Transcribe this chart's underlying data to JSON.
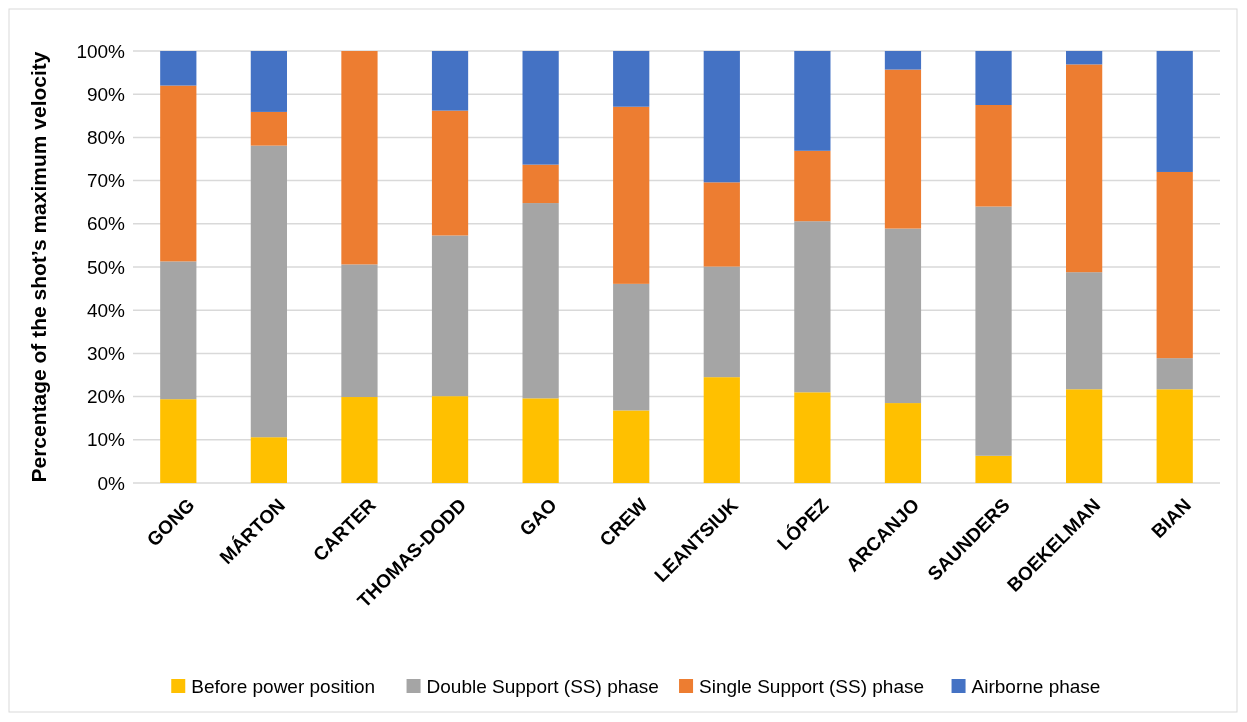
{
  "chart_data": {
    "type": "bar",
    "stacked": true,
    "ylabel": "Percentage of the shot’s maximum velocity",
    "categories": [
      "GONG",
      "MÁRTON",
      "CARTER",
      "THOMAS-DODD",
      "GAO",
      "CREW",
      "LEANTSIUK",
      "LÓPEZ",
      "ARCANJO",
      "SAUNDERS",
      "BOEKELMAN",
      "BIAN"
    ],
    "series": [
      {
        "name": "Before power position",
        "color": "#ffc000",
        "values": [
          19.4,
          10.6,
          19.9,
          20.1,
          19.6,
          16.8,
          24.5,
          21.0,
          18.5,
          6.3,
          21.7,
          21.7
        ]
      },
      {
        "name": "Double Support (SS) phase",
        "color": "#a5a5a5",
        "values": [
          31.9,
          67.5,
          30.7,
          37.2,
          45.2,
          29.3,
          25.6,
          39.6,
          40.4,
          57.7,
          27.1,
          7.2
        ]
      },
      {
        "name": "Single Support (SS) phase",
        "color": "#ed7d31",
        "values": [
          40.7,
          7.8,
          49.4,
          28.9,
          8.9,
          41.0,
          19.5,
          16.3,
          36.8,
          23.5,
          48.1,
          43.1
        ]
      },
      {
        "name": "Airborne phase",
        "color": "#4472c4",
        "values": [
          8.0,
          14.1,
          0,
          13.8,
          26.3,
          12.9,
          30.4,
          23.1,
          4.3,
          12.5,
          3.1,
          28.0
        ]
      }
    ],
    "ylim": [
      0,
      100
    ],
    "yticks": [
      {
        "value": 0,
        "label": "0%"
      },
      {
        "value": 10,
        "label": "10%"
      },
      {
        "value": 20,
        "label": "20%"
      },
      {
        "value": 30,
        "label": "30%"
      },
      {
        "value": 40,
        "label": "40%"
      },
      {
        "value": 50,
        "label": "50%"
      },
      {
        "value": 60,
        "label": "60%"
      },
      {
        "value": 70,
        "label": "70%"
      },
      {
        "value": 80,
        "label": "80%"
      },
      {
        "value": 90,
        "label": "90%"
      },
      {
        "value": 100,
        "label": "100%"
      }
    ],
    "grid": "y",
    "legend": "bottom"
  }
}
